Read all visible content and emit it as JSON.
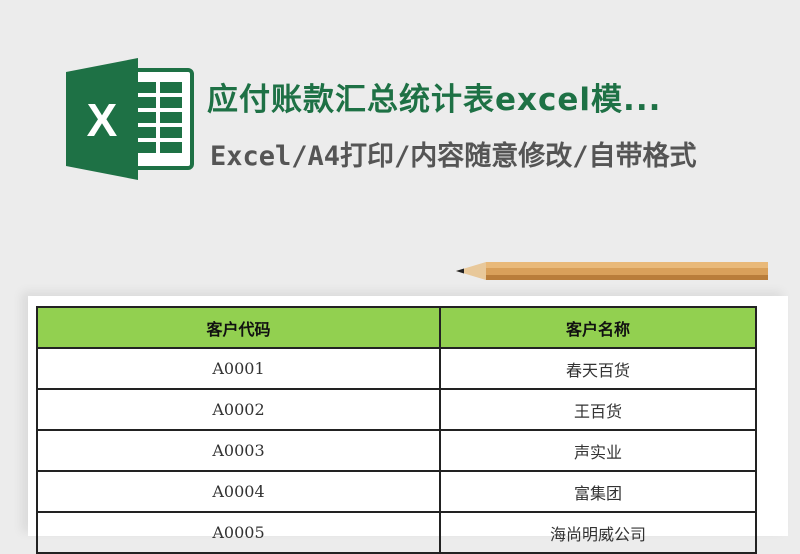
{
  "header": {
    "title": "应付账款汇总统计表excel模...",
    "subtitle": "Excel/A4打印/内容随意修改/自带格式",
    "logo_letter": "X",
    "logo_color": "#1e7145"
  },
  "table": {
    "columns": [
      "客户代码",
      "客户名称"
    ],
    "rows": [
      [
        "A0001",
        "春天百货"
      ],
      [
        "A0002",
        "王百货"
      ],
      [
        "A0003",
        "声实业"
      ],
      [
        "A0004",
        "富集团"
      ],
      [
        "A0005",
        "海尚明威公司"
      ]
    ],
    "header_color": "#92d050"
  }
}
